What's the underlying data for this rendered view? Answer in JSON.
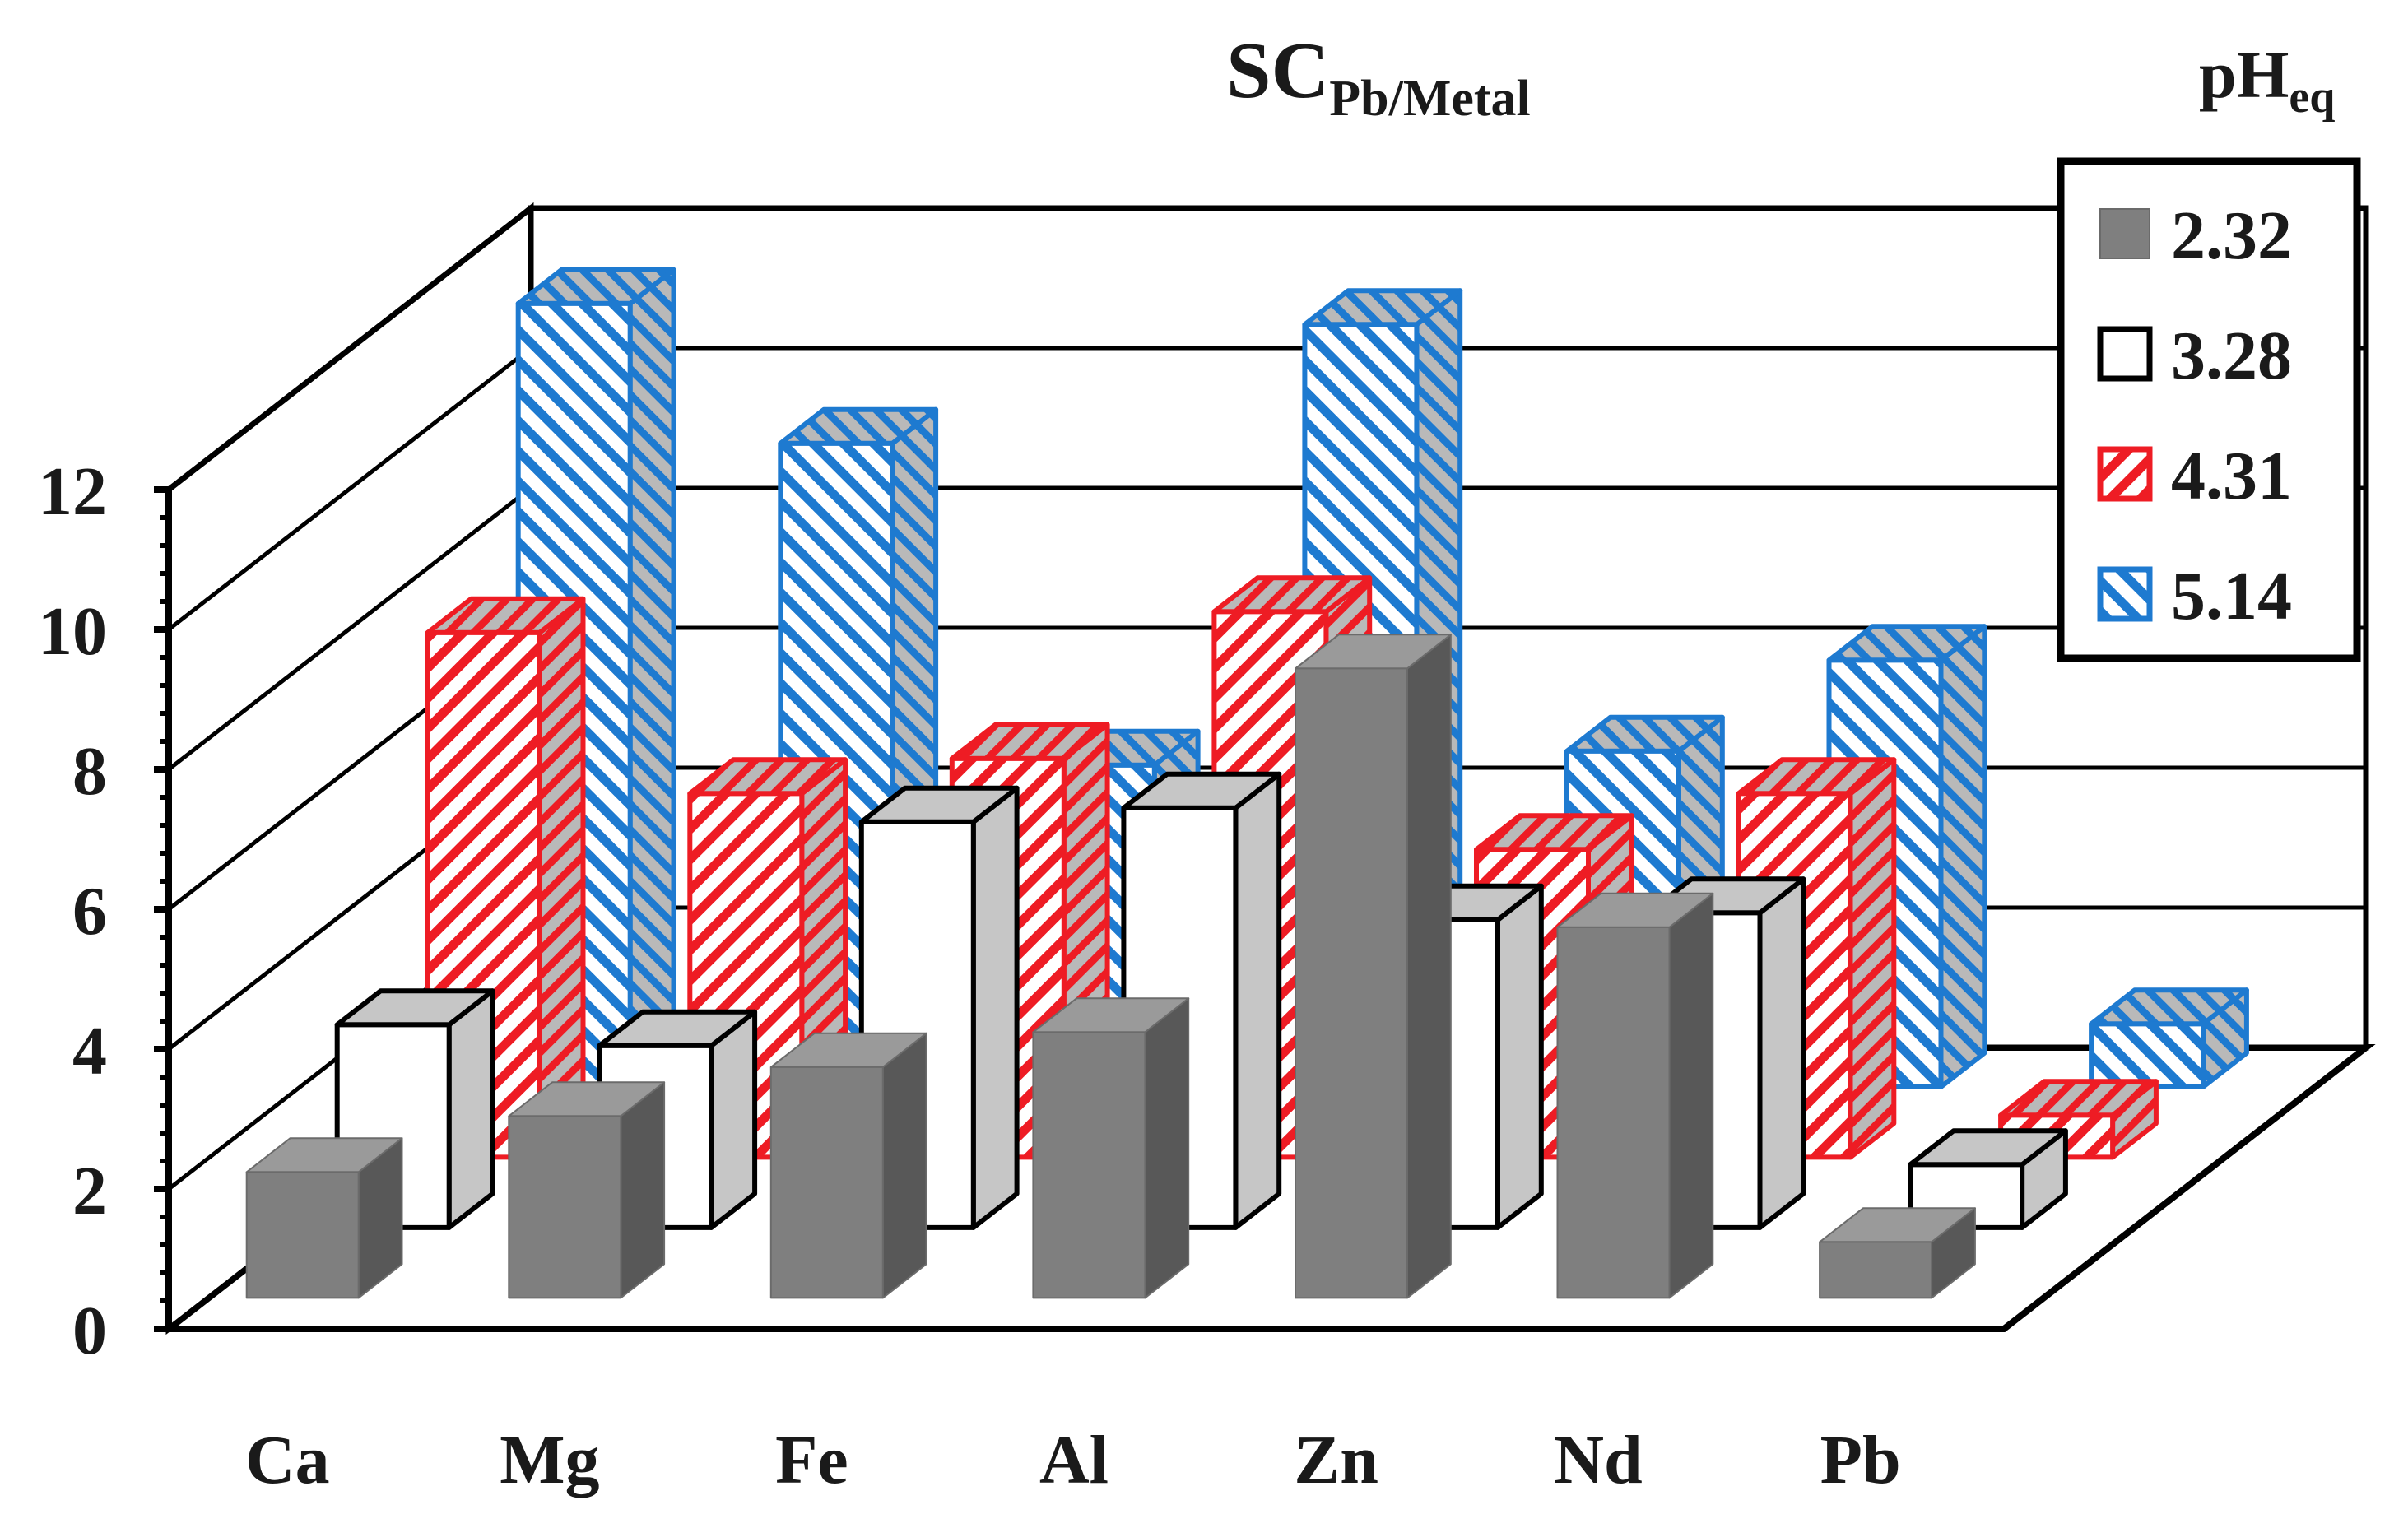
{
  "chart_data": {
    "type": "bar",
    "subtype": "3d-clustered-depth",
    "title_main": "SC",
    "title_sub": "Pb/Metal",
    "legend_title_main": "pH",
    "legend_title_sub": "eq",
    "legend_position": "top-right",
    "categories": [
      "Ca",
      "Mg",
      "Fe",
      "Al",
      "Zn",
      "Nd",
      "Pb"
    ],
    "yticks": [
      "0",
      "2",
      "4",
      "6",
      "8",
      "10",
      "12"
    ],
    "ylim": [
      0,
      12
    ],
    "grid": true,
    "series": [
      {
        "name": "2.32",
        "color": "#7f7f7f",
        "style": "solid",
        "values": [
          1.8,
          2.6,
          3.3,
          3.8,
          9.0,
          5.3,
          0.8
        ]
      },
      {
        "name": "3.28",
        "color": "#ffffff",
        "style": "outline",
        "values": [
          2.9,
          2.6,
          5.8,
          6.0,
          4.4,
          4.5,
          0.9
        ]
      },
      {
        "name": "4.31",
        "color": "#ee1c24",
        "style": "hatch",
        "values": [
          7.5,
          5.2,
          5.7,
          7.8,
          4.4,
          5.2,
          0.6
        ]
      },
      {
        "name": "5.14",
        "color": "#1e7ad0",
        "style": "hatch",
        "values": [
          11.2,
          9.2,
          4.6,
          10.9,
          4.8,
          6.1,
          0.9
        ]
      }
    ]
  }
}
